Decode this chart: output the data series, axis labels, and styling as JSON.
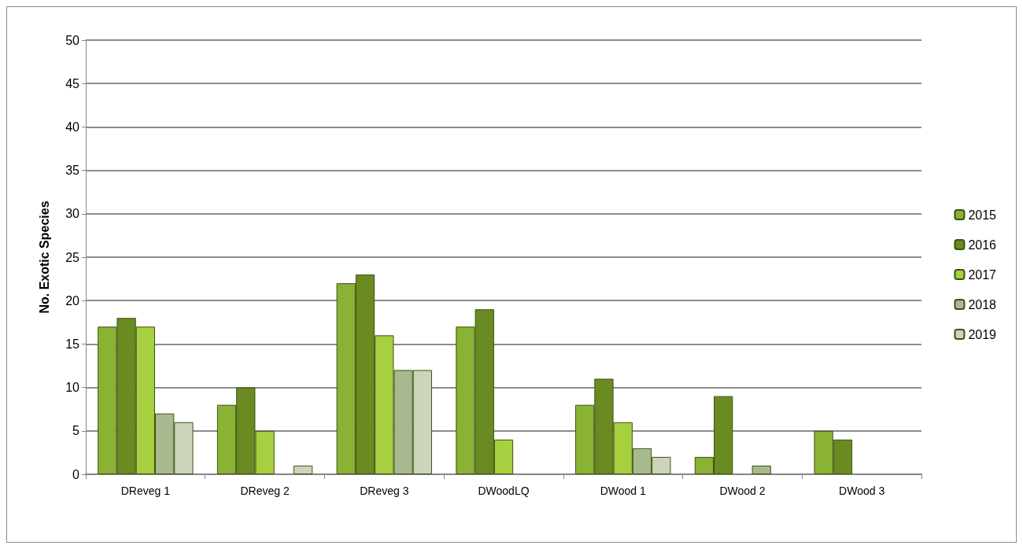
{
  "chart_data": {
    "type": "bar",
    "ylabel": "No. Exotic Species",
    "categories": [
      "DReveg 1",
      "DReveg 2",
      "DReveg 3",
      "DWoodLQ",
      "DWood 1",
      "DWood 2",
      "DWood 3"
    ],
    "series": [
      {
        "name": "2015",
        "color": "#8ab234",
        "values": [
          17,
          8,
          22,
          17,
          8,
          2,
          5
        ]
      },
      {
        "name": "2016",
        "color": "#6a8a22",
        "values": [
          18,
          10,
          23,
          19,
          11,
          9,
          4
        ]
      },
      {
        "name": "2017",
        "color": "#a6d040",
        "values": [
          17,
          5,
          16,
          4,
          6,
          null,
          null
        ]
      },
      {
        "name": "2018",
        "color": "#a9b98f",
        "values": [
          7,
          null,
          12,
          null,
          3,
          1,
          null
        ]
      },
      {
        "name": "2019",
        "color": "#ccd4bc",
        "values": [
          6,
          1,
          12,
          null,
          2,
          null,
          null
        ]
      }
    ],
    "ylim": [
      0,
      50
    ],
    "yticks": [
      0,
      5,
      10,
      15,
      20,
      25,
      30,
      35,
      40,
      45,
      50
    ],
    "grid": "y",
    "legend": "right"
  }
}
